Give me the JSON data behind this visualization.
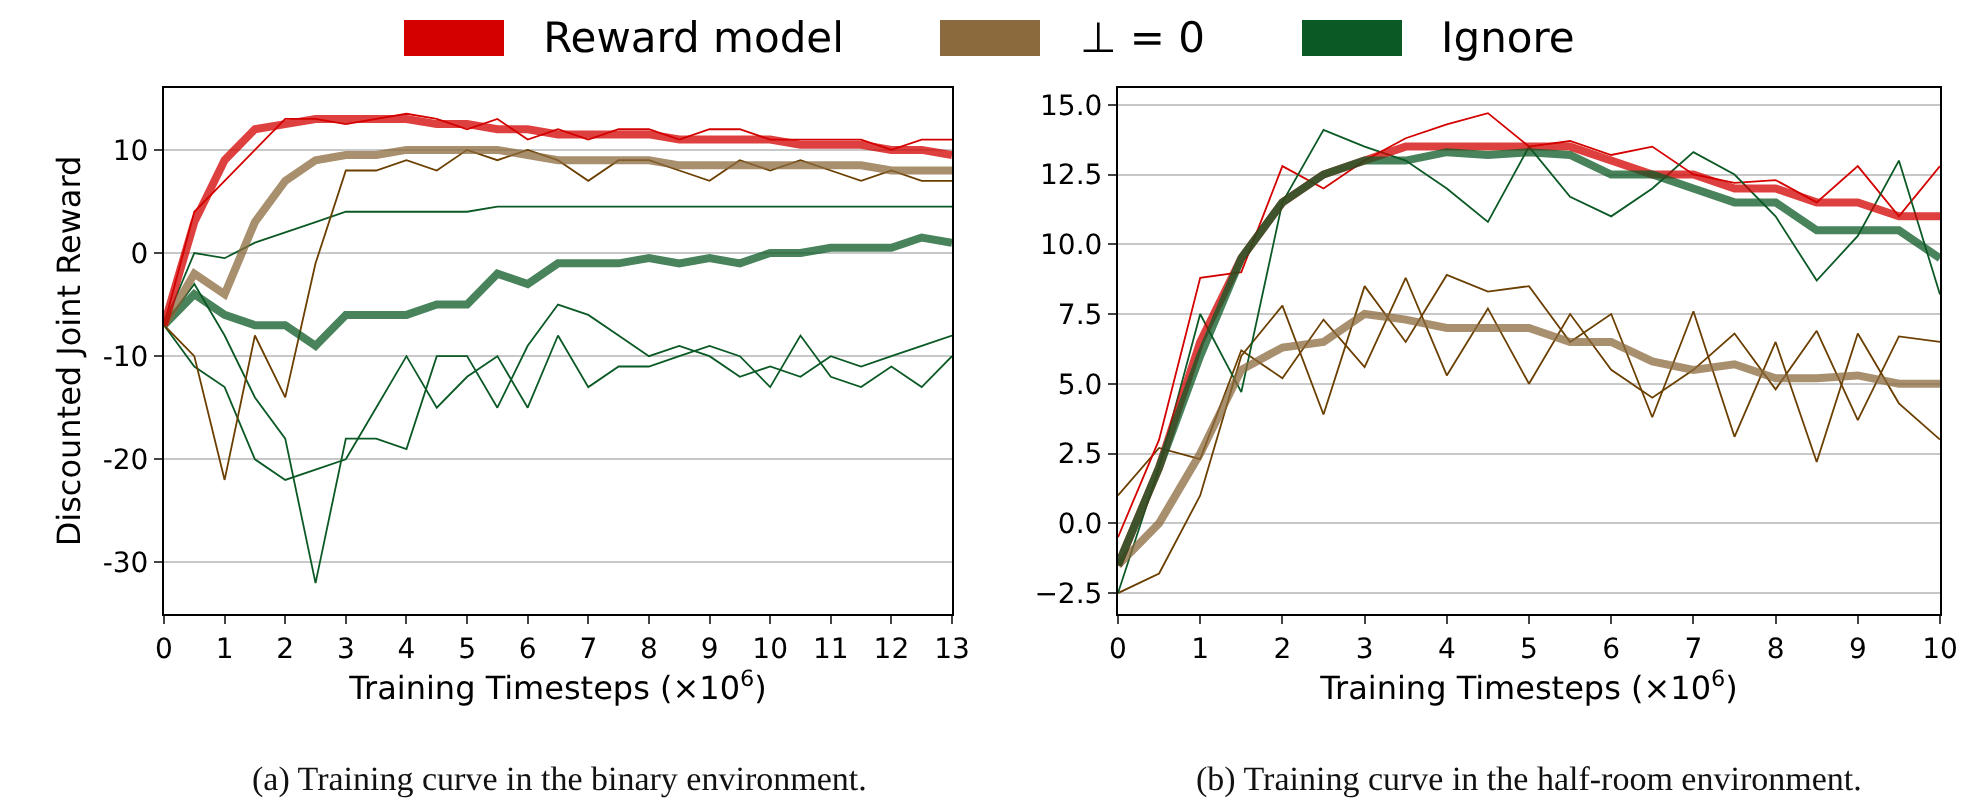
{
  "chart_data": [
    {
      "type": "line",
      "xlabel": "Training Timesteps (×10$^{6}$)",
      "ylabel": "Discounted Joint Reward",
      "legend": "top",
      "grid": "y",
      "marker": "none",
      "line_style": "solid",
      "x": [
        0,
        0.5,
        1,
        1.5,
        2,
        2.5,
        3,
        3.5,
        4,
        4.5,
        5,
        5.5,
        6,
        6.5,
        7,
        7.5,
        8,
        8.5,
        9,
        9.5,
        10,
        10.5,
        11,
        11.5,
        12,
        12.5,
        13
      ],
      "xlim": [
        0,
        13
      ],
      "xticks": [
        0,
        1,
        2,
        3,
        4,
        5,
        6,
        7,
        8,
        9,
        10,
        11,
        12,
        13
      ],
      "ylim": [
        -35,
        16
      ],
      "yticks": [
        -30,
        -20,
        -10,
        0,
        10
      ],
      "annotations": [
        "(a) Training curve in the binary environment."
      ],
      "series": [
        {
          "color": "#0b5a26",
          "values": [
            -7,
            -11,
            -13,
            -20,
            -22,
            -21,
            -20,
            -15,
            -10,
            -15,
            -12,
            -10,
            -15,
            -8,
            -13,
            -11,
            -11,
            -10,
            -9,
            -10,
            -13,
            -8,
            -12,
            -13,
            -11,
            -13,
            -10
          ]
        },
        {
          "color": "#0b5a26",
          "values": [
            -7,
            -3,
            -8,
            -14,
            -18,
            -32,
            -18,
            -18,
            -19,
            -10,
            -10,
            -15,
            -9,
            -5,
            -6,
            -8,
            -10,
            -9,
            -10,
            -12,
            -11,
            -12,
            -10,
            -11,
            -10,
            -9,
            -8
          ]
        },
        {
          "color": "#0b5a26",
          "values": [
            -7,
            0,
            -0.5,
            1,
            2,
            3,
            4,
            4,
            4,
            4,
            4,
            4.5,
            4.5,
            4.5,
            4.5,
            4.5,
            4.5,
            4.5,
            4.5,
            4.5,
            4.5,
            4.5,
            4.5,
            4.5,
            4.5,
            4.5,
            4.5
          ]
        },
        {
          "color": "#6b3f00",
          "values": [
            -7,
            -10,
            -22,
            -8,
            -14,
            -1,
            8,
            8,
            9,
            8,
            10,
            9,
            10,
            9,
            7,
            9,
            9,
            8,
            7,
            9,
            8,
            9,
            8,
            7,
            8,
            7,
            7
          ]
        },
        {
          "color": "#d40000",
          "values": [
            -7,
            4,
            7,
            10,
            13,
            13,
            12.5,
            13,
            13.5,
            13,
            12,
            13,
            11,
            12,
            11,
            12,
            12,
            11,
            12,
            12,
            11,
            11,
            11,
            11,
            10,
            11,
            11
          ]
        },
        {
          "name": "Ignore",
          "color": "#0b5a26",
          "values": [
            -7,
            -4,
            -6,
            -7,
            -7,
            -9,
            -6,
            -6,
            -6,
            -5,
            -5,
            -2,
            -3,
            -1,
            -1,
            -1,
            -0.5,
            -1,
            -0.5,
            -1,
            0,
            0,
            0.5,
            0.5,
            0.5,
            1.5,
            1
          ]
        },
        {
          "name": "⊥ = 0",
          "color": "#8b6a3e",
          "values": [
            -7,
            -2,
            -4,
            3,
            7,
            9,
            9.5,
            9.5,
            10,
            10,
            10,
            10,
            9.5,
            9,
            9,
            9,
            9,
            8.5,
            8.5,
            8.5,
            8.5,
            8.5,
            8.5,
            8.5,
            8,
            8,
            8
          ]
        },
        {
          "name": "Reward model",
          "color": "#d40000",
          "values": [
            -7,
            3,
            9,
            12,
            12.5,
            13,
            13,
            13,
            13,
            12.5,
            12.5,
            12,
            12,
            11.5,
            11.5,
            11.5,
            11.5,
            11,
            11,
            11,
            11,
            10.5,
            10.5,
            10.5,
            10,
            10,
            9.5
          ]
        }
      ]
    },
    {
      "type": "line",
      "xlabel": "Training Timesteps (×10$^{6}$)",
      "grid": "y",
      "marker": "none",
      "line_style": "solid",
      "x": [
        0,
        0.5,
        1,
        1.5,
        2,
        2.5,
        3,
        3.5,
        4,
        4.5,
        5,
        5.5,
        6,
        6.5,
        7,
        7.5,
        8,
        8.5,
        9,
        9.5,
        10
      ],
      "xlim": [
        0,
        10
      ],
      "xticks": [
        0,
        1,
        2,
        3,
        4,
        5,
        6,
        7,
        8,
        9,
        10
      ],
      "ylim": [
        -3.25,
        15.6
      ],
      "yticks": [
        {
          "value": -2.5,
          "label": "−2.5"
        },
        {
          "value": 0,
          "label": "0.0"
        },
        {
          "value": 2.5,
          "label": "2.5"
        },
        {
          "value": 5,
          "label": "5.0"
        },
        {
          "value": 7.5,
          "label": "7.5"
        },
        {
          "value": 10,
          "label": "10.0"
        },
        {
          "value": 12.5,
          "label": "12.5"
        },
        {
          "value": 15,
          "label": "15.0"
        }
      ],
      "annotations": [
        "(b) Training curve in the half-room environment."
      ],
      "series": [
        {
          "color": "#6b3f00",
          "values": [
            -2.5,
            -1.8,
            1,
            6,
            7.8,
            3.9,
            8.5,
            6.5,
            8.9,
            8.3,
            8.5,
            6.5,
            7.5,
            3.8,
            7.6,
            3.1,
            6.5,
            2.2,
            6.8,
            4.3,
            3
          ]
        },
        {
          "color": "#6b3f00",
          "values": [
            1,
            2.7,
            2.3,
            6.2,
            5.2,
            7.3,
            5.6,
            8.8,
            5.3,
            7.7,
            5,
            7.5,
            5.5,
            4.5,
            5.5,
            6.8,
            4.8,
            6.9,
            3.7,
            6.7,
            6.5
          ]
        },
        {
          "color": "#d40000",
          "values": [
            -0.5,
            3,
            8.8,
            9,
            12.8,
            12,
            13,
            13.8,
            14.3,
            14.7,
            13.5,
            13.7,
            13.2,
            13.5,
            12.5,
            12.2,
            12.3,
            11.5,
            12.8,
            11,
            12.8
          ]
        },
        {
          "color": "#0b5a26",
          "values": [
            -2.5,
            2,
            7.5,
            4.7,
            11.5,
            14.1,
            13.5,
            13,
            12,
            10.8,
            13.5,
            11.7,
            11,
            12,
            13.3,
            12.5,
            11,
            8.7,
            10.3,
            13,
            8.2
          ]
        },
        {
          "name": "⊥ = 0",
          "color": "#8b6a3e",
          "values": [
            -1.5,
            0,
            2.5,
            5.5,
            6.3,
            6.5,
            7.5,
            7.3,
            7,
            7,
            7,
            6.5,
            6.5,
            5.8,
            5.5,
            5.7,
            5.2,
            5.2,
            5.3,
            5,
            5
          ]
        },
        {
          "name": "Reward model",
          "color": "#d40000",
          "values": [
            -1.5,
            2,
            6.5,
            9.5,
            11.5,
            12.5,
            13,
            13.5,
            13.5,
            13.5,
            13.5,
            13.5,
            13,
            12.5,
            12.5,
            12,
            12,
            11.5,
            11.5,
            11,
            11
          ]
        },
        {
          "name": "Ignore",
          "color": "#0b5a26",
          "values": [
            -1.5,
            2,
            6,
            9.5,
            11.5,
            12.5,
            13,
            13,
            13.3,
            13.2,
            13.3,
            13.2,
            12.5,
            12.5,
            12,
            11.5,
            11.5,
            10.5,
            10.5,
            10.5,
            9.5
          ]
        }
      ]
    }
  ]
}
